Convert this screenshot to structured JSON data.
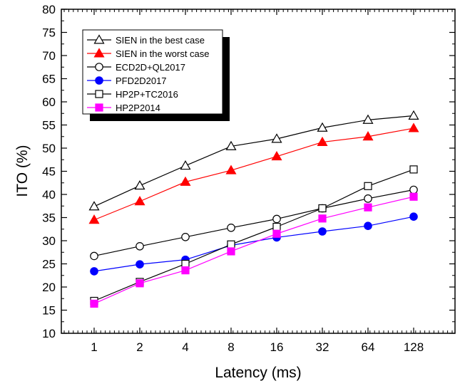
{
  "chart_data": {
    "type": "line",
    "xlabel": "Latency (ms)",
    "ylabel": "ITO (%)",
    "categories": [
      "1",
      "2",
      "4",
      "8",
      "16",
      "32",
      "64",
      "128"
    ],
    "ylim": [
      10,
      80
    ],
    "yticks": [
      10,
      15,
      20,
      25,
      30,
      35,
      40,
      45,
      50,
      55,
      60,
      65,
      70,
      75,
      80
    ],
    "grid": false,
    "legend_position": "top-left",
    "series": [
      {
        "name": "SIEN in the best case",
        "color": "#000000",
        "marker": "triangle-open",
        "values": [
          37.4,
          41.9,
          46.2,
          50.4,
          52.0,
          54.4,
          56.1,
          57.0
        ]
      },
      {
        "name": "SIEN in the worst case",
        "color": "#ff0000",
        "marker": "triangle-filled",
        "values": [
          34.5,
          38.5,
          42.7,
          45.2,
          48.2,
          51.3,
          52.5,
          54.3
        ]
      },
      {
        "name": "ECD2D+QL2017",
        "color": "#000000",
        "marker": "circle-open",
        "values": [
          26.7,
          28.8,
          30.8,
          32.8,
          34.7,
          37.0,
          39.1,
          41.0
        ]
      },
      {
        "name": "PFD2D2017",
        "color": "#0000ff",
        "marker": "circle-filled",
        "values": [
          23.4,
          24.9,
          25.9,
          29.0,
          30.7,
          32.0,
          33.2,
          35.2
        ]
      },
      {
        "name": "HP2P+TC2016",
        "color": "#000000",
        "marker": "square-open",
        "values": [
          17.0,
          21.1,
          25.0,
          29.2,
          33.0,
          37.0,
          41.8,
          45.4
        ]
      },
      {
        "name": "HP2P2014",
        "color": "#ff00ff",
        "marker": "square-filled",
        "values": [
          16.4,
          20.8,
          23.6,
          27.7,
          31.5,
          34.8,
          37.2,
          39.5
        ]
      }
    ]
  }
}
